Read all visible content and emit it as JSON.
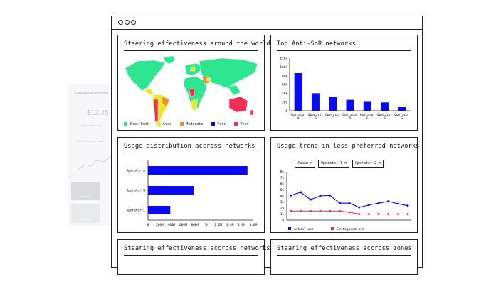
{
  "background_card": {
    "title": "Current Month Revenue",
    "amount": "$12,45",
    "note": "Higher than last",
    "memory_label": "Current Memory Load",
    "tiles": [
      "Partner",
      "Steering"
    ]
  },
  "window": {
    "controls": [
      "circle",
      "circle",
      "circle"
    ]
  },
  "panels": {
    "world_map": {
      "title": "Steering effectiveness around the world",
      "legend": [
        {
          "label": "Excellent",
          "color": "#2ee68f"
        },
        {
          "label": "Good",
          "color": "#e8e82b"
        },
        {
          "label": "Moderate",
          "color": "#f08a24"
        },
        {
          "label": "Fair",
          "color": "#0a0aee"
        },
        {
          "label": "Poor",
          "color": "#ef2f55"
        }
      ]
    },
    "top_networks": {
      "title": "Top Anti-SoR networks"
    },
    "usage_distribution": {
      "title": "Usage distribution accross networks"
    },
    "usage_trend": {
      "title": "Usage trend in less preferred networks",
      "filters": [
        "Japan ✖",
        "Operator 1 ✖",
        "Operator 2 ✖"
      ]
    },
    "steering_networks": {
      "title": "Stearing effectiveness accross networks"
    },
    "steering_zones": {
      "title": "Stearing effectiveness accross zones"
    }
  },
  "chart_data": [
    {
      "type": "bar",
      "categories": [
        "Operator A",
        "Operator B",
        "Operator C",
        "Operator D",
        "Operator E",
        "Operator F",
        "Operator G"
      ],
      "values": [
        86000,
        40000,
        32000,
        25000,
        22000,
        19000,
        9000
      ],
      "yticks": [
        "0",
        "20k",
        "40k",
        "60k",
        "80k",
        "100k",
        "120k"
      ],
      "ylim": [
        0,
        120000
      ],
      "color": "#0a0aee"
    },
    {
      "type": "bar",
      "orientation": "horizontal",
      "categories": [
        "Operator A",
        "Operator B",
        "Operator C"
      ],
      "values": [
        1700000,
        780000,
        380000
      ],
      "xticks": [
        "0",
        "200M",
        "400M",
        "600M",
        "800M",
        "1M",
        "1.2M",
        "1.4M",
        "1.6M",
        "1.8M"
      ],
      "xlim": [
        0,
        1800000
      ],
      "color": "#0a0aee"
    },
    {
      "type": "line",
      "yticks": [
        "0",
        "1%",
        "2%",
        "3%",
        "4%",
        "5%",
        "6%",
        "7%",
        "8%"
      ],
      "ylim": [
        0,
        8
      ],
      "series": [
        {
          "name": "Actual use",
          "color": "#0a0aee",
          "values": [
            4.1,
            4.6,
            3.4,
            4.0,
            4.1,
            2.8,
            2.8,
            2.1,
            2.5,
            2.8,
            3.1,
            2.7,
            2.4
          ]
        },
        {
          "name": "Configured use",
          "color": "#ef2f55",
          "values": [
            1.5,
            1.5,
            1.5,
            1.5,
            1.5,
            1.5,
            1.3,
            1.0,
            1.0,
            1.0,
            1.0,
            1.0,
            1.0
          ]
        }
      ]
    }
  ]
}
